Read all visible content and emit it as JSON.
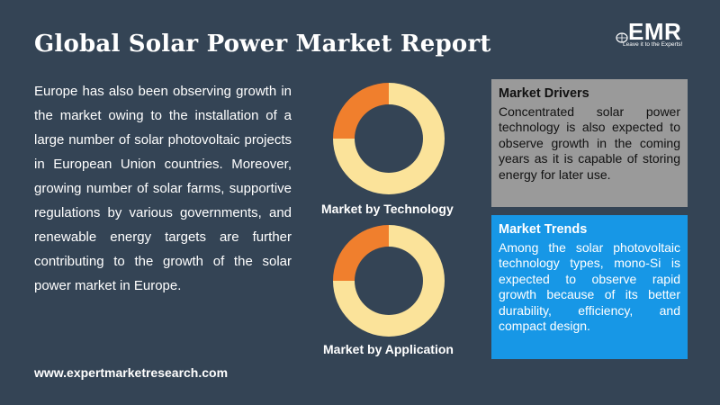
{
  "header": {
    "title": "Global Solar Power Market Report"
  },
  "logo": {
    "brand": "EMR",
    "tagline": "Leave it to the Experts!",
    "icon": "globe-icon"
  },
  "main": {
    "paragraph": "Europe has also been observing growth in the market owing to the installation of a large number of solar photovoltaic projects in European Union countries. Moreover, growing number of solar farms, supportive regulations by various governments, and renewable energy targets are further contributing to the growth of the solar power market in Europe.",
    "url": "www.expertmarketresearch.com"
  },
  "charts": {
    "technology_label": "Market by Technology",
    "application_label": "Market by Application"
  },
  "chart_data": [
    {
      "type": "pie",
      "title": "Market by Technology",
      "values": [
        75,
        25
      ],
      "colors": [
        "#fbe39a",
        "#f07f2d"
      ]
    },
    {
      "type": "pie",
      "title": "Market by Application",
      "values": [
        75,
        25
      ],
      "colors": [
        "#fbe39a",
        "#f07f2d"
      ]
    }
  ],
  "cards": {
    "drivers": {
      "heading": "Market Drivers",
      "body": "Concentrated solar power technology is also expected to observe growth in the coming years as it is capable of storing energy for later use.",
      "color": "#9a9a9a"
    },
    "trends": {
      "heading": "Market Trends",
      "body": "Among the solar photovoltaic technology types, mono-Si is expected to observe rapid growth because of its better durability, efficiency, and compact design.",
      "color": "#1797e6"
    }
  },
  "colors": {
    "background": "#344455",
    "donut_main": "#fbe39a",
    "donut_slice": "#f07f2d"
  }
}
